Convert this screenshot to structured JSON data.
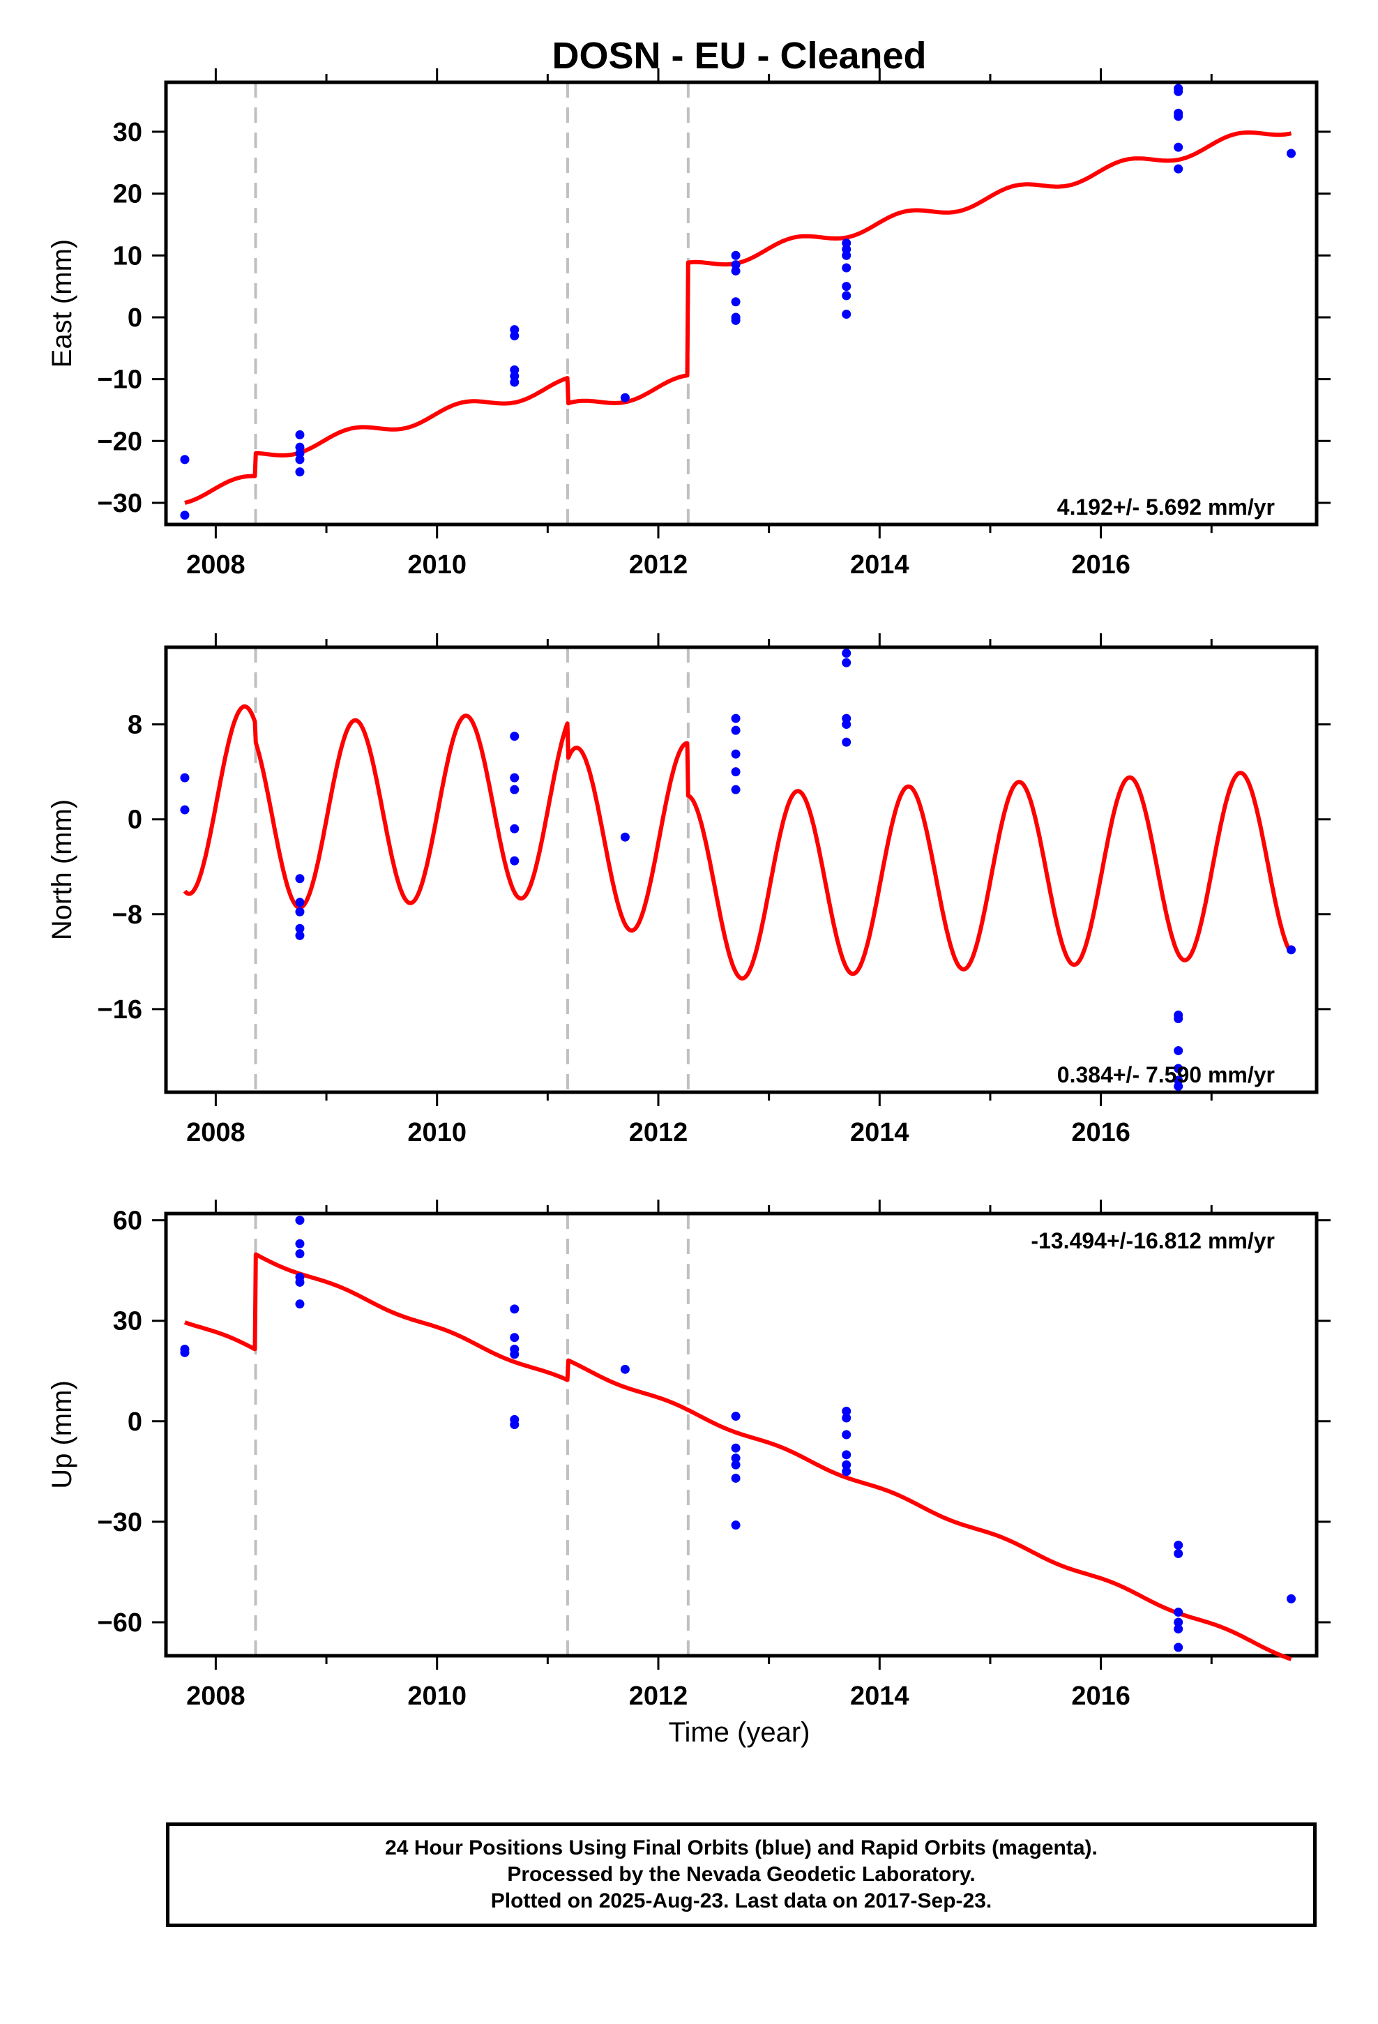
{
  "footer": {
    "line1": "24 Hour Positions Using Final Orbits (blue) and Rapid Orbits (magenta).",
    "line2": "Processed by the Nevada Geodetic Laboratory.",
    "line3": "Plotted on 2025-Aug-23. Last data on 2017-Sep-23."
  },
  "chart_data": {
    "type": "scatter",
    "title": "DOSN  - EU - Cleaned",
    "xlabel": "Time (year)",
    "xlim": [
      2007.55,
      2017.95
    ],
    "x_ticks": [
      2008,
      2010,
      2012,
      2014,
      2016
    ],
    "x_minor_ticks": [
      2009,
      2011,
      2013,
      2015,
      2017
    ],
    "equipment_change_years": [
      2008.36,
      2011.18,
      2012.27
    ],
    "colors": {
      "data_points": "#0000ff",
      "model_line": "#ff0000",
      "change_lines": "#c0c0c0"
    },
    "panels": [
      {
        "name": "East",
        "ylabel": "East (mm)",
        "ylim": [
          -33.5,
          38
        ],
        "y_ticks": [
          -30,
          -20,
          -10,
          0,
          10,
          20,
          30
        ],
        "rate_text": "4.192+/- 5.692 mm/yr",
        "rate_position": "bottom-right",
        "model": {
          "start": 2007.72,
          "end": 2017.72,
          "amplitude": 1.0,
          "phase": 0.25,
          "segments": [
            {
              "from": 2007.72,
              "to": 2008.36,
              "start_value": -29.0,
              "slope": 4.192
            },
            {
              "from": 2008.36,
              "to": 2011.18,
              "start_value": -22.6,
              "slope": 4.192
            },
            {
              "from": 2011.18,
              "to": 2012.27,
              "start_value": -14.9,
              "slope": 4.192
            },
            {
              "from": 2012.27,
              "to": 2017.72,
              "start_value": 7.9,
              "slope": 4.192
            }
          ]
        },
        "points": [
          [
            2007.72,
            -23
          ],
          [
            2007.72,
            -32
          ],
          [
            2008.76,
            -19
          ],
          [
            2008.76,
            -21
          ],
          [
            2008.76,
            -22
          ],
          [
            2008.76,
            -23
          ],
          [
            2008.76,
            -25
          ],
          [
            2010.7,
            -2
          ],
          [
            2010.7,
            -3
          ],
          [
            2010.7,
            -8.5
          ],
          [
            2010.7,
            -9.5
          ],
          [
            2010.7,
            -10.5
          ],
          [
            2011.7,
            -13
          ],
          [
            2012.7,
            10
          ],
          [
            2012.7,
            8.5
          ],
          [
            2012.7,
            7.5
          ],
          [
            2012.7,
            2.5
          ],
          [
            2012.7,
            0
          ],
          [
            2012.7,
            -0.5
          ],
          [
            2013.7,
            12
          ],
          [
            2013.7,
            11
          ],
          [
            2013.7,
            10
          ],
          [
            2013.7,
            8
          ],
          [
            2013.7,
            5
          ],
          [
            2013.7,
            3.5
          ],
          [
            2013.7,
            0.5
          ],
          [
            2016.7,
            37
          ],
          [
            2016.7,
            36.5
          ],
          [
            2016.7,
            33
          ],
          [
            2016.7,
            32.5
          ],
          [
            2016.7,
            27.5
          ],
          [
            2016.7,
            24
          ],
          [
            2017.72,
            26.5
          ]
        ]
      },
      {
        "name": "North",
        "ylabel": "North (mm)",
        "ylim": [
          -23,
          14.5
        ],
        "y_ticks": [
          -16,
          -8,
          0,
          8
        ],
        "rate_text": "0.384+/- 7.590 mm/yr",
        "rate_position": "bottom-right",
        "model": {
          "start": 2007.72,
          "end": 2017.72,
          "amplitude": 7.8,
          "phase": 0.29,
          "segments": [
            {
              "from": 2007.72,
              "to": 2008.36,
              "start_value": 1.5,
              "slope": 0.384
            },
            {
              "from": 2008.36,
              "to": 2011.18,
              "start_value": 0.2,
              "slope": 0.384
            },
            {
              "from": 2011.18,
              "to": 2012.27,
              "start_value": -1.8,
              "slope": 0.384
            },
            {
              "from": 2012.27,
              "to": 2017.72,
              "start_value": -5.8,
              "slope": 0.384
            }
          ]
        },
        "points": [
          [
            2007.72,
            3.5
          ],
          [
            2007.72,
            0.8
          ],
          [
            2008.76,
            -5
          ],
          [
            2008.76,
            -7
          ],
          [
            2008.76,
            -7.8
          ],
          [
            2008.76,
            -9.2
          ],
          [
            2008.76,
            -9.8
          ],
          [
            2010.7,
            7
          ],
          [
            2010.7,
            3.5
          ],
          [
            2010.7,
            2.5
          ],
          [
            2010.7,
            -0.8
          ],
          [
            2010.7,
            -3.5
          ],
          [
            2011.7,
            -1.5
          ],
          [
            2012.7,
            8.5
          ],
          [
            2012.7,
            7.5
          ],
          [
            2012.7,
            5.5
          ],
          [
            2012.7,
            4
          ],
          [
            2012.7,
            2.5
          ],
          [
            2013.7,
            14
          ],
          [
            2013.7,
            13.2
          ],
          [
            2013.7,
            8.5
          ],
          [
            2013.7,
            8
          ],
          [
            2013.7,
            6.5
          ],
          [
            2016.7,
            -16.5
          ],
          [
            2016.7,
            -16.8
          ],
          [
            2016.7,
            -19.5
          ],
          [
            2016.7,
            -21
          ],
          [
            2016.7,
            -22
          ],
          [
            2016.7,
            -22.5
          ],
          [
            2017.72,
            -11
          ]
        ]
      },
      {
        "name": "Up",
        "ylabel": "Up (mm)",
        "ylim": [
          -70,
          62
        ],
        "y_ticks": [
          -60,
          -30,
          0,
          30,
          60
        ],
        "rate_text": "-13.494+/-16.812 mm/yr",
        "rate_position": "top-right",
        "model": {
          "start": 2007.72,
          "end": 2017.72,
          "amplitude": 0.6,
          "phase": 0.15,
          "segments": [
            {
              "from": 2007.72,
              "to": 2008.36,
              "start_value": 30.0,
              "slope": -13.494
            },
            {
              "from": 2008.36,
              "to": 2011.18,
              "start_value": 49.8,
              "slope": -13.494
            },
            {
              "from": 2011.18,
              "to": 2012.27,
              "start_value": 17.7,
              "slope": -13.494
            },
            {
              "from": 2012.27,
              "to": 2017.72,
              "start_value": 3.0,
              "slope": -13.494
            }
          ]
        },
        "points": [
          [
            2007.72,
            21.5
          ],
          [
            2007.72,
            20.5
          ],
          [
            2008.76,
            60
          ],
          [
            2008.76,
            53
          ],
          [
            2008.76,
            50
          ],
          [
            2008.76,
            43
          ],
          [
            2008.76,
            41.5
          ],
          [
            2008.76,
            35
          ],
          [
            2010.7,
            33.5
          ],
          [
            2010.7,
            25
          ],
          [
            2010.7,
            21.5
          ],
          [
            2010.7,
            20
          ],
          [
            2010.7,
            0.5
          ],
          [
            2010.7,
            -1
          ],
          [
            2011.7,
            15.5
          ],
          [
            2012.7,
            1.5
          ],
          [
            2012.7,
            -8
          ],
          [
            2012.7,
            -11
          ],
          [
            2012.7,
            -13
          ],
          [
            2012.7,
            -17
          ],
          [
            2012.7,
            -31
          ],
          [
            2013.7,
            3
          ],
          [
            2013.7,
            1
          ],
          [
            2013.7,
            -4
          ],
          [
            2013.7,
            -10
          ],
          [
            2013.7,
            -13
          ],
          [
            2013.7,
            -15
          ],
          [
            2016.7,
            -37
          ],
          [
            2016.7,
            -39.5
          ],
          [
            2016.7,
            -57
          ],
          [
            2016.7,
            -60
          ],
          [
            2016.7,
            -62
          ],
          [
            2016.7,
            -67.5
          ],
          [
            2017.72,
            -53
          ]
        ]
      }
    ]
  }
}
